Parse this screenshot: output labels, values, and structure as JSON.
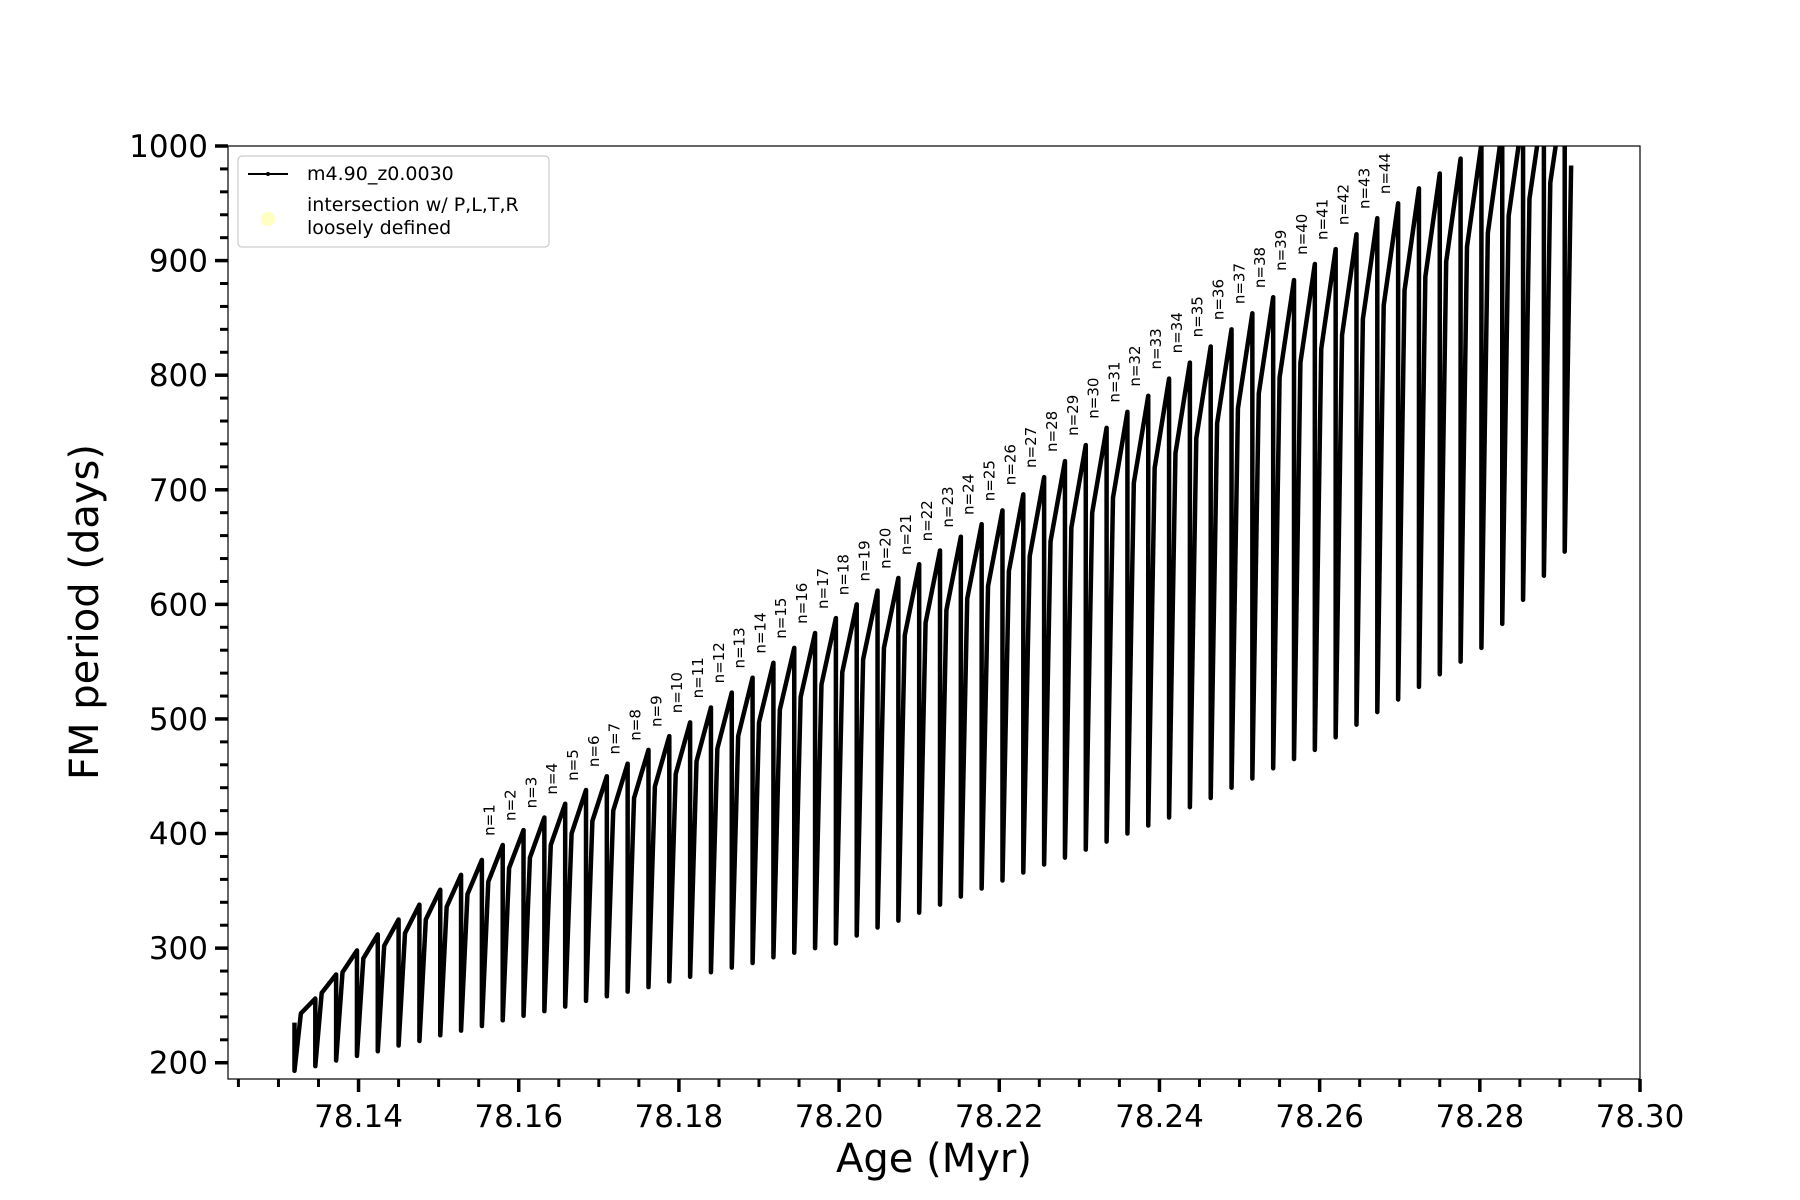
{
  "chart_data": {
    "type": "line",
    "xlabel": "Age (Myr)",
    "ylabel": "FM period (days)",
    "xlim": [
      78.1237,
      78.3
    ],
    "ylim": [
      185.8,
      1000
    ],
    "xticks": [
      78.14,
      78.16,
      78.18,
      {
        "value": 78.2,
        "label": "78.20"
      },
      78.22,
      78.24,
      78.26,
      78.28,
      {
        "value": 78.3,
        "label": "78.30"
      }
    ],
    "yticks": [
      200,
      300,
      400,
      500,
      600,
      700,
      800,
      900,
      1000
    ],
    "xminor_ticks": [
      78.125,
      78.13,
      78.135,
      78.145,
      78.15,
      78.155,
      78.165,
      78.17,
      78.175,
      78.185,
      78.19,
      78.195,
      78.205,
      78.21,
      78.215,
      78.225,
      78.23,
      78.235,
      78.245,
      78.25,
      78.255,
      78.265,
      78.27,
      78.275,
      78.285,
      78.29,
      78.295
    ],
    "yminor_ticks": [
      220,
      240,
      260,
      280,
      320,
      340,
      360,
      380,
      420,
      440,
      460,
      480,
      520,
      540,
      560,
      580,
      620,
      640,
      660,
      680,
      720,
      740,
      760,
      780,
      820,
      840,
      860,
      880,
      920,
      940,
      960,
      980
    ],
    "grid": false,
    "legend": "upper left",
    "series": [
      {
        "name": [
          "m4.90_z0.0030"
        ],
        "color": "#000000",
        "x": [
          78.132,
          78.132,
          78.1328,
          78.1346,
          78.1346,
          78.1354,
          78.1372,
          78.1372,
          78.138,
          78.1398,
          78.1398,
          78.1406,
          78.1424,
          78.1424,
          78.1432,
          78.145,
          78.145,
          78.1458,
          78.1476,
          78.1476,
          78.1484,
          78.1502,
          78.1502,
          78.151,
          78.1528,
          78.1528,
          78.1536,
          78.1554,
          78.1554,
          78.1562,
          78.158,
          78.158,
          78.1588,
          78.1606,
          78.1606,
          78.1614,
          78.1632,
          78.1632,
          78.164,
          78.1658,
          78.1658,
          78.1666,
          78.1684,
          78.1684,
          78.1692,
          78.171,
          78.171,
          78.1718,
          78.1736,
          78.1736,
          78.1744,
          78.1762,
          78.1762,
          78.177,
          78.1788,
          78.1788,
          78.1796,
          78.1814,
          78.1814,
          78.1822,
          78.184,
          78.184,
          78.1848,
          78.1866,
          78.1866,
          78.1874,
          78.1892,
          78.1892,
          78.19,
          78.1918,
          78.1918,
          78.1926,
          78.1944,
          78.1944,
          78.1952,
          78.197,
          78.197,
          78.1978,
          78.1996,
          78.1996,
          78.2004,
          78.2022,
          78.2022,
          78.203,
          78.2048,
          78.2048,
          78.2056,
          78.2074,
          78.2074,
          78.2082,
          78.21,
          78.21,
          78.2108,
          78.2126,
          78.2126,
          78.2134,
          78.2152,
          78.2152,
          78.216,
          78.2178,
          78.2178,
          78.2186,
          78.2204,
          78.2204,
          78.2212,
          78.223,
          78.223,
          78.2238,
          78.2256,
          78.2256,
          78.2264,
          78.2282,
          78.2282,
          78.229,
          78.2308,
          78.2308,
          78.2316,
          78.2334,
          78.2334,
          78.2342,
          78.236,
          78.236,
          78.2368,
          78.2386,
          78.2386,
          78.2394,
          78.2412,
          78.2412,
          78.242,
          78.2438,
          78.2438,
          78.2446,
          78.2464,
          78.2464,
          78.2472,
          78.249,
          78.249,
          78.2498,
          78.2516,
          78.2516,
          78.2524,
          78.2542,
          78.2542,
          78.255,
          78.2568,
          78.2568,
          78.2576,
          78.2594,
          78.2594,
          78.2602,
          78.262,
          78.262,
          78.2628,
          78.2646,
          78.2646,
          78.2654,
          78.2672,
          78.2672,
          78.268,
          78.2698,
          78.2698,
          78.2706,
          78.2724,
          78.2724,
          78.2732,
          78.275,
          78.275,
          78.2758,
          78.2776,
          78.2776,
          78.2784,
          78.2802,
          78.2802,
          78.281,
          78.2828,
          78.2828,
          78.2836,
          78.2854,
          78.2854,
          78.2862,
          78.288,
          78.288,
          78.2888,
          78.2906,
          78.2906,
          78.2914
        ],
        "values": [
          235,
          193,
          243,
          256,
          197,
          261,
          277,
          202,
          279,
          298,
          206,
          291,
          312,
          210,
          302,
          325,
          215,
          313,
          338,
          219,
          325,
          351,
          224,
          336,
          364,
          228,
          347,
          377,
          232,
          358,
          390,
          237,
          370,
          403,
          241,
          379,
          414,
          245,
          390,
          426,
          249,
          400,
          438,
          254,
          411,
          450,
          258,
          420,
          461,
          262,
          431,
          473,
          266,
          441,
          485,
          271,
          452,
          497,
          275,
          463,
          510,
          279,
          474,
          523,
          283,
          485,
          536,
          287,
          497,
          549,
          292,
          508,
          562,
          296,
          519,
          575,
          300,
          530,
          588,
          304,
          541,
          600,
          311,
          552,
          612,
          318,
          562,
          623,
          324,
          573,
          635,
          331,
          584,
          647,
          338,
          595,
          659,
          345,
          605,
          670,
          352,
          616,
          682,
          359,
          629,
          696,
          366,
          642,
          711,
          373,
          655,
          725,
          379,
          667,
          739,
          386,
          680,
          754,
          393,
          693,
          768,
          400,
          706,
          782,
          407,
          719,
          797,
          414,
          732,
          811,
          423,
          745,
          825,
          431,
          758,
          840,
          440,
          771,
          854,
          448,
          784,
          868,
          457,
          798,
          883,
          465,
          811,
          897,
          473,
          823,
          910,
          484,
          835,
          923,
          495,
          849,
          937,
          506,
          861,
          950,
          517,
          874,
          963,
          528,
          886,
          976,
          539,
          899,
          989,
          550,
          912,
          1002,
          562,
          924,
          1015,
          583,
          939,
          1028,
          604,
          954,
          1041,
          625,
          968,
          1054,
          646,
          983
        ]
      },
      {
        "name": [
          "intersection w/ P,L,T,R",
          "loosely defined"
        ],
        "color": "#ffffc0",
        "type": "scatter",
        "x": [],
        "values": []
      }
    ],
    "annotations": [
      {
        "text": "n=1",
        "x": 78.157,
        "y": 398
      },
      {
        "text": "n=2",
        "x": 78.1596,
        "y": 411
      },
      {
        "text": "n=3",
        "x": 78.1622,
        "y": 422
      },
      {
        "text": "n=4",
        "x": 78.1648,
        "y": 434
      },
      {
        "text": "n=5",
        "x": 78.1674,
        "y": 446
      },
      {
        "text": "n=6",
        "x": 78.17,
        "y": 458
      },
      {
        "text": "n=7",
        "x": 78.1726,
        "y": 469
      },
      {
        "text": "n=8",
        "x": 78.1752,
        "y": 481
      },
      {
        "text": "n=9",
        "x": 78.1778,
        "y": 493
      },
      {
        "text": "n=10",
        "x": 78.1804,
        "y": 505
      },
      {
        "text": "n=11",
        "x": 78.183,
        "y": 518
      },
      {
        "text": "n=12",
        "x": 78.1856,
        "y": 531
      },
      {
        "text": "n=13",
        "x": 78.1882,
        "y": 544
      },
      {
        "text": "n=14",
        "x": 78.1908,
        "y": 557
      },
      {
        "text": "n=15",
        "x": 78.1934,
        "y": 570
      },
      {
        "text": "n=16",
        "x": 78.196,
        "y": 583
      },
      {
        "text": "n=17",
        "x": 78.1986,
        "y": 596
      },
      {
        "text": "n=18",
        "x": 78.2012,
        "y": 608
      },
      {
        "text": "n=19",
        "x": 78.2038,
        "y": 620
      },
      {
        "text": "n=20",
        "x": 78.2064,
        "y": 631
      },
      {
        "text": "n=21",
        "x": 78.209,
        "y": 643
      },
      {
        "text": "n=22",
        "x": 78.2116,
        "y": 655
      },
      {
        "text": "n=23",
        "x": 78.2142,
        "y": 667
      },
      {
        "text": "n=24",
        "x": 78.2168,
        "y": 678
      },
      {
        "text": "n=25",
        "x": 78.2194,
        "y": 690
      },
      {
        "text": "n=26",
        "x": 78.222,
        "y": 704
      },
      {
        "text": "n=27",
        "x": 78.2246,
        "y": 719
      },
      {
        "text": "n=28",
        "x": 78.2272,
        "y": 733
      },
      {
        "text": "n=29",
        "x": 78.2298,
        "y": 747
      },
      {
        "text": "n=30",
        "x": 78.2324,
        "y": 762
      },
      {
        "text": "n=31",
        "x": 78.235,
        "y": 776
      },
      {
        "text": "n=32",
        "x": 78.2376,
        "y": 790
      },
      {
        "text": "n=33",
        "x": 78.2402,
        "y": 805
      },
      {
        "text": "n=34",
        "x": 78.2428,
        "y": 819
      },
      {
        "text": "n=35",
        "x": 78.2454,
        "y": 833
      },
      {
        "text": "n=36",
        "x": 78.248,
        "y": 848
      },
      {
        "text": "n=37",
        "x": 78.2506,
        "y": 862
      },
      {
        "text": "n=38",
        "x": 78.2532,
        "y": 876
      },
      {
        "text": "n=39",
        "x": 78.2558,
        "y": 891
      },
      {
        "text": "n=40",
        "x": 78.2584,
        "y": 905
      },
      {
        "text": "n=41",
        "x": 78.261,
        "y": 918
      },
      {
        "text": "n=42",
        "x": 78.2636,
        "y": 931
      },
      {
        "text": "n=43",
        "x": 78.2662,
        "y": 945
      },
      {
        "text": "n=44",
        "x": 78.2688,
        "y": 958
      }
    ]
  }
}
